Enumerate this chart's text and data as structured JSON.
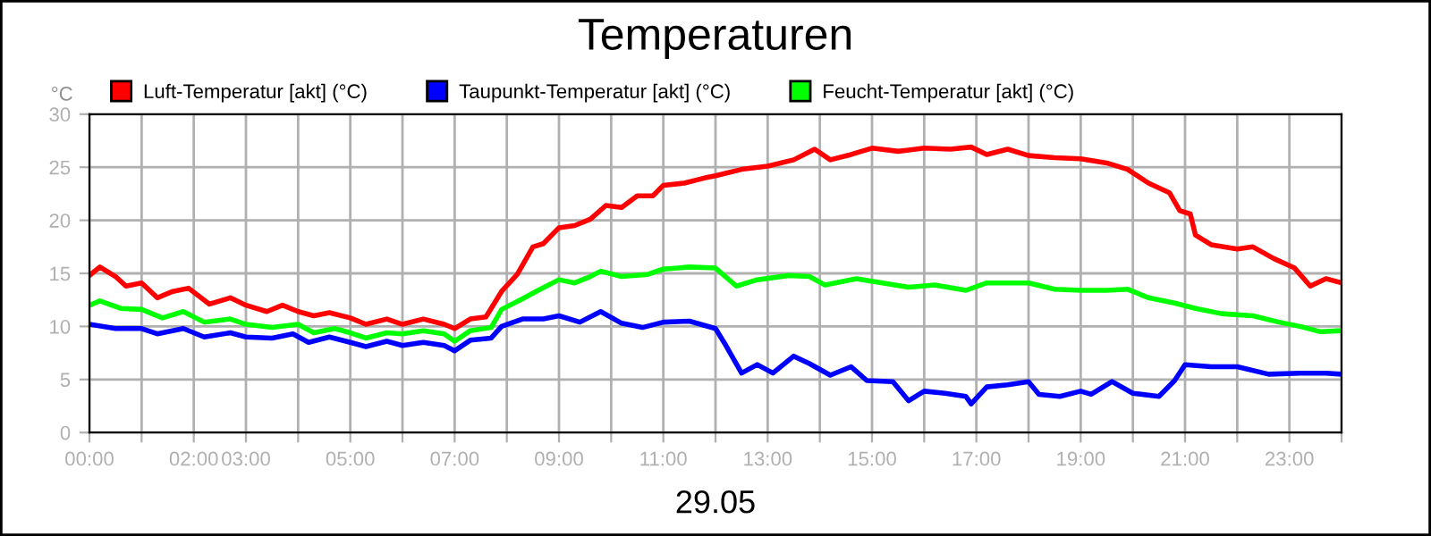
{
  "chart_data": {
    "type": "line",
    "title": "Temperaturen",
    "xlabel": "29.05",
    "ylabel": "°C",
    "xlim": [
      0,
      24
    ],
    "ylim": [
      0,
      30
    ],
    "yticks": [
      0,
      5,
      10,
      15,
      20,
      25,
      30
    ],
    "xticks": [
      {
        "value": 0,
        "label": "00:00"
      },
      {
        "value": 1,
        "label": null
      },
      {
        "value": 2,
        "label": "02:00"
      },
      {
        "value": 3,
        "label": "03:00"
      },
      {
        "value": 4,
        "label": null
      },
      {
        "value": 5,
        "label": "05:00"
      },
      {
        "value": 6,
        "label": null
      },
      {
        "value": 7,
        "label": "07:00"
      },
      {
        "value": 8,
        "label": null
      },
      {
        "value": 9,
        "label": "09:00"
      },
      {
        "value": 10,
        "label": null
      },
      {
        "value": 11,
        "label": "11:00"
      },
      {
        "value": 12,
        "label": null
      },
      {
        "value": 13,
        "label": "13:00"
      },
      {
        "value": 14,
        "label": null
      },
      {
        "value": 15,
        "label": "15:00"
      },
      {
        "value": 16,
        "label": null
      },
      {
        "value": 17,
        "label": "17:00"
      },
      {
        "value": 18,
        "label": null
      },
      {
        "value": 19,
        "label": "19:00"
      },
      {
        "value": 20,
        "label": null
      },
      {
        "value": 21,
        "label": "21:00"
      },
      {
        "value": 22,
        "label": null
      },
      {
        "value": 23,
        "label": "23:00"
      },
      {
        "value": 24,
        "label": null
      }
    ],
    "grid": true,
    "legend": "top left",
    "marker": "none",
    "line_style": "solid",
    "series": [
      {
        "name": "Luft-Temperatur [akt] (°C)",
        "color": "#ff0000",
        "x": [
          0,
          0.2,
          0.5,
          0.7,
          1.0,
          1.3,
          1.6,
          1.9,
          2.3,
          2.7,
          3.0,
          3.4,
          3.7,
          4.0,
          4.3,
          4.6,
          5.0,
          5.3,
          5.7,
          6.0,
          6.4,
          6.8,
          7.0,
          7.3,
          7.6,
          7.9,
          8.2,
          8.5,
          8.7,
          9.0,
          9.3,
          9.6,
          9.9,
          10.2,
          10.5,
          10.8,
          11.0,
          11.4,
          11.8,
          12.0,
          12.5,
          13.0,
          13.5,
          13.9,
          14.2,
          14.6,
          15.0,
          15.5,
          16.0,
          16.5,
          16.9,
          17.2,
          17.6,
          18.0,
          18.5,
          19.0,
          19.5,
          19.9,
          20.3,
          20.7,
          20.9,
          21.1,
          21.2,
          21.5,
          22.0,
          22.3,
          22.7,
          23.1,
          23.4,
          23.7,
          24.0
        ],
        "values": [
          14.8,
          15.6,
          14.7,
          13.8,
          14.1,
          12.7,
          13.3,
          13.6,
          12.1,
          12.7,
          12.0,
          11.4,
          12.0,
          11.4,
          11.0,
          11.3,
          10.8,
          10.2,
          10.7,
          10.2,
          10.7,
          10.2,
          9.8,
          10.7,
          10.9,
          13.3,
          14.9,
          17.5,
          17.8,
          19.3,
          19.5,
          20.1,
          21.4,
          21.2,
          22.3,
          22.3,
          23.3,
          23.5,
          24.0,
          24.2,
          24.8,
          25.1,
          25.7,
          26.7,
          25.7,
          26.2,
          26.8,
          26.5,
          26.8,
          26.7,
          26.9,
          26.2,
          26.7,
          26.1,
          25.9,
          25.8,
          25.4,
          24.8,
          23.5,
          22.6,
          20.9,
          20.6,
          18.6,
          17.7,
          17.3,
          17.5,
          16.4,
          15.5,
          13.8,
          14.5,
          14.1
        ]
      },
      {
        "name": "Taupunkt-Temperatur [akt] (°C)",
        "color": "#0000ff",
        "x": [
          0,
          0.5,
          1.0,
          1.3,
          1.8,
          2.2,
          2.7,
          3.0,
          3.5,
          3.9,
          4.2,
          4.6,
          5.0,
          5.3,
          5.7,
          6.0,
          6.4,
          6.8,
          7.0,
          7.3,
          7.7,
          7.9,
          8.3,
          8.7,
          9.0,
          9.4,
          9.8,
          10.2,
          10.6,
          11.0,
          11.5,
          12.0,
          12.2,
          12.5,
          12.8,
          13.1,
          13.5,
          13.8,
          14.2,
          14.6,
          14.9,
          15.4,
          15.7,
          16.0,
          16.4,
          16.8,
          16.9,
          17.2,
          17.6,
          18.0,
          18.2,
          18.6,
          19.0,
          19.2,
          19.6,
          20.0,
          20.5,
          20.8,
          21.0,
          21.5,
          22.0,
          22.6,
          23.2,
          23.7,
          24.0
        ],
        "values": [
          10.2,
          9.8,
          9.8,
          9.3,
          9.8,
          9.0,
          9.4,
          9.0,
          8.9,
          9.3,
          8.5,
          9.0,
          8.5,
          8.1,
          8.6,
          8.2,
          8.5,
          8.2,
          7.7,
          8.7,
          8.9,
          10.0,
          10.7,
          10.7,
          11.0,
          10.4,
          11.4,
          10.3,
          9.9,
          10.4,
          10.5,
          9.8,
          8.2,
          5.6,
          6.4,
          5.6,
          7.2,
          6.5,
          5.4,
          6.2,
          4.9,
          4.8,
          3.0,
          3.9,
          3.7,
          3.4,
          2.7,
          4.3,
          4.5,
          4.8,
          3.6,
          3.4,
          3.9,
          3.6,
          4.8,
          3.7,
          3.4,
          4.9,
          6.4,
          6.2,
          6.2,
          5.5,
          5.6,
          5.6,
          5.5
        ]
      },
      {
        "name": "Feucht-Temperatur [akt] (°C)",
        "color": "#00ff00",
        "x": [
          0,
          0.2,
          0.6,
          1.0,
          1.4,
          1.8,
          2.2,
          2.7,
          3.0,
          3.5,
          4.0,
          4.3,
          4.7,
          5.0,
          5.3,
          5.7,
          6.0,
          6.4,
          6.8,
          7.0,
          7.3,
          7.7,
          7.9,
          8.3,
          8.6,
          9.0,
          9.3,
          9.6,
          9.8,
          10.2,
          10.7,
          11.0,
          11.5,
          12.0,
          12.4,
          12.8,
          13.4,
          13.8,
          14.1,
          14.7,
          15.2,
          15.7,
          16.2,
          16.8,
          17.2,
          18.0,
          18.5,
          19.0,
          19.5,
          19.9,
          20.3,
          20.8,
          21.2,
          21.7,
          22.3,
          22.8,
          23.2,
          23.6,
          24.0
        ],
        "values": [
          12.0,
          12.4,
          11.7,
          11.6,
          10.8,
          11.4,
          10.4,
          10.7,
          10.2,
          9.9,
          10.2,
          9.4,
          9.8,
          9.4,
          8.9,
          9.4,
          9.3,
          9.6,
          9.3,
          8.6,
          9.6,
          9.9,
          11.6,
          12.6,
          13.4,
          14.4,
          14.1,
          14.7,
          15.2,
          14.7,
          14.9,
          15.4,
          15.6,
          15.5,
          13.8,
          14.4,
          14.8,
          14.7,
          13.9,
          14.5,
          14.1,
          13.7,
          13.9,
          13.4,
          14.1,
          14.1,
          13.5,
          13.4,
          13.4,
          13.5,
          12.7,
          12.2,
          11.7,
          11.2,
          11.0,
          10.4,
          10.0,
          9.5,
          9.6
        ]
      }
    ]
  }
}
